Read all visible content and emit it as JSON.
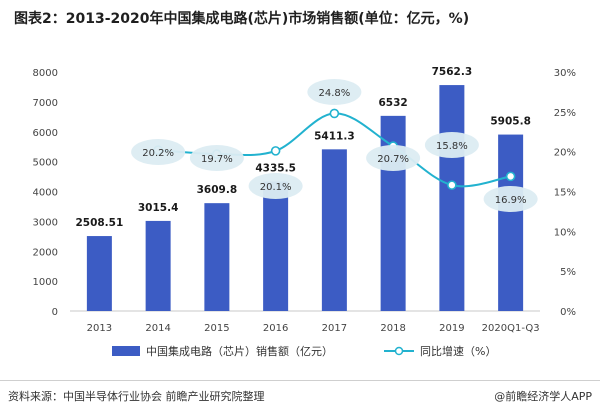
{
  "title": "图表2：2013-2020年中国集成电路(芯片)市场销售额(单位：亿元，%)",
  "footer": {
    "source": "资料来源：中国半导体行业协会 前瞻产业研究院整理",
    "brand": "@前瞻经济学人APP"
  },
  "colors": {
    "bar": "#3c5cc4",
    "line": "#22b2cf",
    "bubble": "#dcecf2"
  },
  "chart_data": {
    "type": "bar",
    "title": "图表2：2013-2020年中国集成电路(芯片)市场销售额(单位：亿元，%)",
    "categories": [
      "2013",
      "2014",
      "2015",
      "2016",
      "2017",
      "2018",
      "2019",
      "2020Q1-Q3"
    ],
    "series": [
      {
        "name": "中国集成电路（芯片）销售额（亿元）",
        "type": "bar",
        "axis": "left",
        "values": [
          2508.51,
          3015.4,
          3609.8,
          4335.5,
          5411.3,
          6532,
          7562.3,
          5905.8
        ],
        "labels": [
          "2508.51",
          "3015.4",
          "3609.8",
          "4335.5",
          "5411.3",
          "6532",
          "7562.3",
          "5905.8"
        ]
      },
      {
        "name": "同比增速（%）",
        "type": "line",
        "axis": "right",
        "values": [
          null,
          20.2,
          19.7,
          20.1,
          24.8,
          20.7,
          15.8,
          16.9
        ],
        "labels": [
          "",
          "20.2%",
          "19.7%",
          "20.1%",
          "24.8%",
          "20.7%",
          "15.8%",
          "16.9%"
        ]
      }
    ],
    "y_left": {
      "min": 0,
      "max": 8000,
      "ticks": [
        "0",
        "1000",
        "2000",
        "3000",
        "4000",
        "5000",
        "6000",
        "7000",
        "8000"
      ]
    },
    "y_right": {
      "min": 0,
      "max": 30,
      "ticks": [
        "0%",
        "5%",
        "10%",
        "15%",
        "20%",
        "25%",
        "30%"
      ]
    },
    "legend": [
      "中国集成电路（芯片）销售额（亿元）",
      "同比增速（%）"
    ],
    "legend_position": "bottom"
  }
}
